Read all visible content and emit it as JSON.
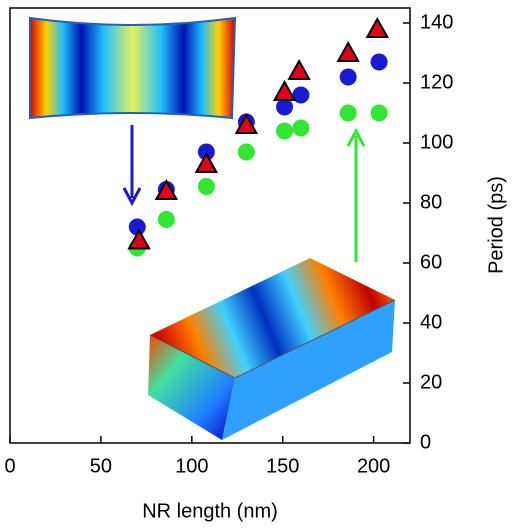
{
  "chart_data": {
    "type": "scatter",
    "xlabel": "NR length (nm)",
    "ylabel": "Period (ps)",
    "xlim": [
      0,
      220
    ],
    "xticks": [
      0,
      50,
      100,
      150,
      200
    ],
    "ylim": [
      0,
      145
    ],
    "yticks": [
      0,
      20,
      40,
      60,
      80,
      100,
      120,
      140
    ],
    "y_axis_side": "right",
    "series": [
      {
        "color": "#1a1ad0",
        "marker": "circle",
        "x": [
          70,
          86,
          108,
          130,
          151,
          160,
          186,
          203
        ],
        "values": [
          72,
          84.5,
          97,
          107,
          112,
          116,
          122,
          127
        ]
      },
      {
        "color": "#33e633",
        "marker": "circle",
        "x": [
          70,
          86,
          108,
          130,
          151,
          160,
          186,
          203
        ],
        "values": [
          65,
          74.5,
          85.5,
          97,
          104,
          105,
          110,
          110
        ]
      },
      {
        "color": "#e0001a",
        "marker": "triangle",
        "x": [
          71,
          86,
          108,
          130,
          151,
          159,
          186,
          202
        ],
        "values": [
          67.5,
          84,
          93,
          106,
          117,
          124,
          130,
          138
        ]
      }
    ]
  }
}
